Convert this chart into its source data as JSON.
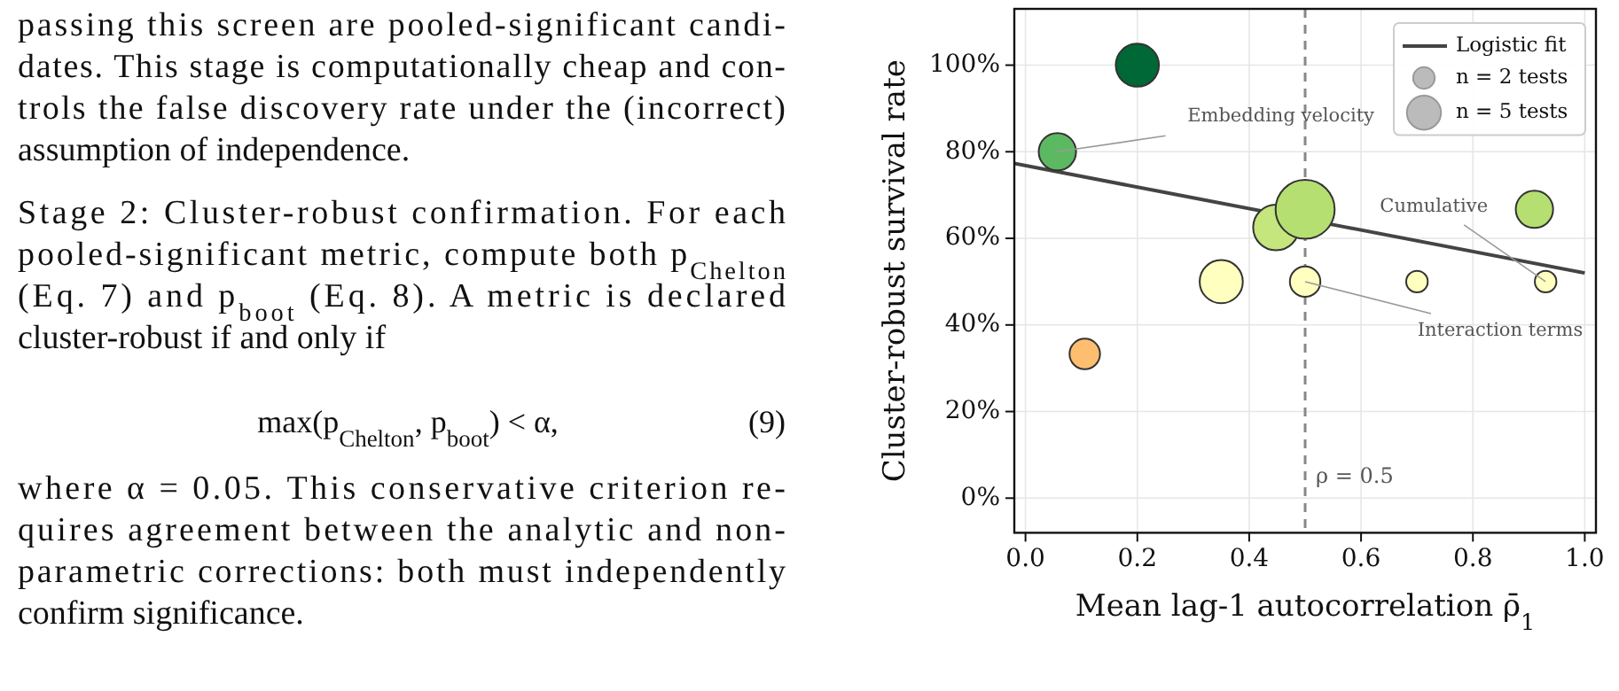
{
  "chart_data": {
    "type": "bubble",
    "xlabel": "Mean lag-1 autocorrelation ρ̄$_{1}$",
    "ylabel": "Cluster-robust survival rate",
    "xlim": [
      -0.02,
      1.02
    ],
    "xticks": [
      {
        "value": 0,
        "label": "0.0"
      },
      0.2,
      0.4,
      0.6,
      0.8,
      {
        "value": 1,
        "label": "1.0"
      }
    ],
    "ylim": [
      -8,
      113
    ],
    "yticks": [
      {
        "value": 0,
        "label": "0%"
      },
      {
        "value": 20,
        "label": "20%"
      },
      {
        "value": 40,
        "label": "40%"
      },
      {
        "value": 60,
        "label": "60%"
      },
      {
        "value": 80,
        "label": "80%"
      },
      {
        "value": 100,
        "label": "100%"
      }
    ],
    "grid": true,
    "legend": "top right",
    "size_legend": [
      {
        "value": 2,
        "label": "n = 2 tests"
      },
      {
        "value": 5,
        "label": "n = 5 tests"
      }
    ],
    "series": [
      {
        "x": [
          0.2,
          0.057,
          0.106,
          0.35,
          0.448,
          0.5,
          0.5,
          0.7,
          0.93,
          0.91
        ],
        "values": [
          100,
          80,
          33.3,
          50,
          62.5,
          66.7,
          50,
          50,
          50,
          66.7
        ],
        "sizes": [
          8,
          6,
          4,
          8,
          9,
          15,
          4,
          2,
          2,
          6
        ],
        "colors": [
          "#006837",
          "#5db961",
          "#fdbf6f",
          "#ffffbf",
          "#c5e57d",
          "#b5df70",
          "#ffffbf",
          "#ffffbf",
          "#ffffbf",
          "#b5df70"
        ]
      },
      {
        "type": "line",
        "name": "Logistic fit",
        "color": "#444444",
        "x": [
          -0.02,
          0.25,
          1.0
        ],
        "values": [
          77.3,
          70.6,
          52
        ]
      }
    ],
    "ref_lines": [
      {
        "axis": "x",
        "value": 0.5,
        "label": "ρ = 0.5",
        "color": "#888888",
        "line_style": "dashed"
      }
    ],
    "annotations": [
      "passing this screen are pooled-significant candi-\ndates. This stage is computationally cheap and con-\ntrols the false discovery rate under the (incorrect)\nassumption of independence.",
      "Stage 2: Cluster-robust confirmation.    For each\npooled-significant metric, compute both p$_{Chelton}$\n(Eq. 7) and p$_{boot}$ (Eq. 8).  A metric is declared\ncluster-robust if and only if",
      "max(p$_{Chelton}$, p$_{boot}$) < α,",
      "(9)",
      "where α = 0.05. This conservative criterion re-\nquires agreement between the analytic and non-\nparametric corrections: both must independently\nconfirm significance.",
      {
        "text": "Embedding velocity",
        "x": 0.057,
        "y": 80
      },
      {
        "text": "Cumulative",
        "x": 0.93,
        "y": 50
      },
      {
        "text": "Interaction terms",
        "x": 0.5,
        "y": 50
      }
    ]
  }
}
